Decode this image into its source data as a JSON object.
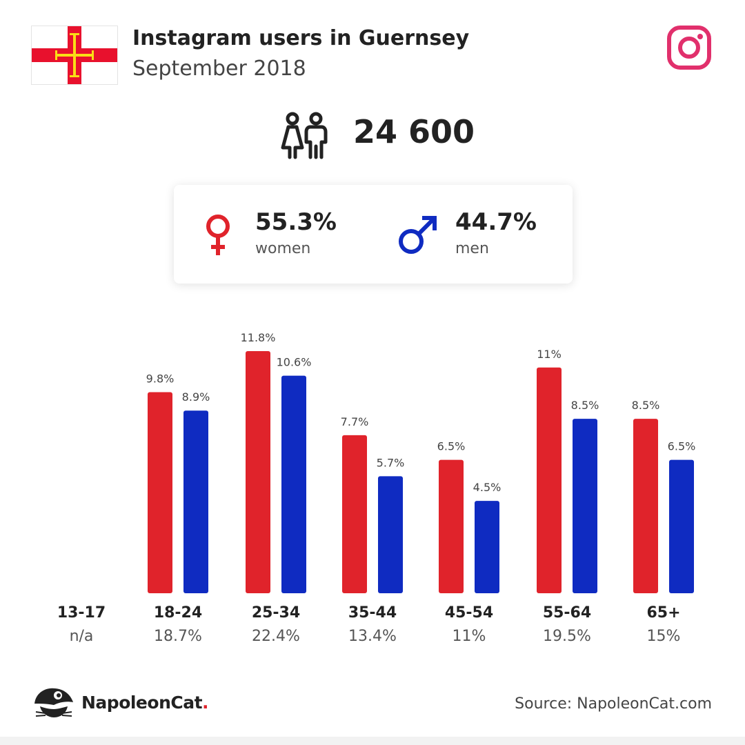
{
  "header": {
    "title": "Instagram users in Guernsey",
    "subtitle": "September 2018"
  },
  "icons": {
    "flag": "guernsey-flag-icon",
    "platform": "instagram-icon",
    "users": "users-icon",
    "female": "female-icon",
    "male": "male-icon",
    "brand": "napoleoncat-logo-icon"
  },
  "total_users": "24 600",
  "gender": {
    "women_pct": "55.3%",
    "women_label": "women",
    "men_pct": "44.7%",
    "men_label": "men"
  },
  "colors": {
    "women": "#e0232b",
    "men": "#0f2bc1",
    "instagram": "#e1306c",
    "flag_red": "#e8112d",
    "flag_gold": "#f9dd16"
  },
  "chart_data": {
    "type": "bar",
    "categories": [
      "13-17",
      "18-24",
      "25-34",
      "35-44",
      "45-54",
      "55-64",
      "65+"
    ],
    "category_totals": [
      "n/a",
      "18.7%",
      "22.4%",
      "13.4%",
      "11%",
      "19.5%",
      "15%"
    ],
    "series": [
      {
        "name": "women",
        "values": [
          null,
          9.8,
          11.8,
          7.7,
          6.5,
          11,
          8.5
        ],
        "labels": [
          "",
          "9.8%",
          "11.8%",
          "7.7%",
          "6.5%",
          "11%",
          "8.5%"
        ]
      },
      {
        "name": "men",
        "values": [
          null,
          8.9,
          10.6,
          5.7,
          4.5,
          8.5,
          6.5
        ],
        "labels": [
          "",
          "8.9%",
          "10.6%",
          "5.7%",
          "4.5%",
          "8.5%",
          "6.5%"
        ]
      }
    ]
  },
  "footer": {
    "brand_name": "NapoleonCat",
    "brand_dot": ".",
    "source": "Source: NapoleonCat.com"
  }
}
